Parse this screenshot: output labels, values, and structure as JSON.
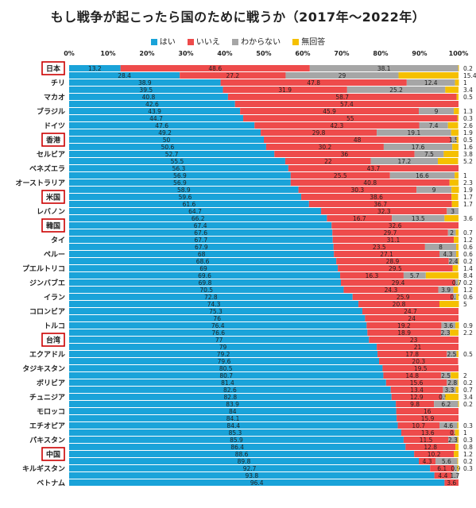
{
  "title": "もし戦争が起こったら国のために戦うか（2017年～2022年）",
  "legend": [
    "はい",
    "いいえ",
    "わからない",
    "無回答"
  ],
  "colors": {
    "yes": "#1AA3D9",
    "no": "#EE4B4B",
    "unknown": "#A6A6A6",
    "noanswer": "#F5C000",
    "highlight": "#CC0000"
  },
  "chart_data": {
    "type": "bar",
    "orientation": "horizontal",
    "stacked": true,
    "xlim": [
      0,
      100
    ],
    "xticks": [
      "0%",
      "10%",
      "20%",
      "30%",
      "40%",
      "50%",
      "60%",
      "70%",
      "80%",
      "90%",
      "100%"
    ],
    "series": [
      {
        "name": "はい",
        "key": "yes"
      },
      {
        "name": "いいえ",
        "key": "no"
      },
      {
        "name": "わからない",
        "key": "unknown"
      },
      {
        "name": "無回答",
        "key": "noanswer"
      }
    ],
    "rows": [
      {
        "country": "日本",
        "highlight": true,
        "yes": 13.2,
        "no": 48.6,
        "unknown": 38.1,
        "noanswer": 0.2,
        "labels": [
          "13.2",
          "48.6",
          "38.1",
          "0.2"
        ]
      },
      {
        "country": "",
        "yes": 28.4,
        "no": 27.2,
        "unknown": 29.0,
        "noanswer": 15.4,
        "labels": [
          "28.4",
          "27.2",
          "29",
          "15.4"
        ]
      },
      {
        "country": "チリ",
        "yes": 38.9,
        "no": 47.8,
        "unknown": 12.4,
        "noanswer": 1.0,
        "labels": [
          "38.9",
          "47.8",
          "12.4",
          "1"
        ]
      },
      {
        "country": "",
        "yes": 39.5,
        "no": 31.9,
        "unknown": 25.2,
        "noanswer": 3.4,
        "labels": [
          "39.5",
          "31.9",
          "25.2",
          "3.4"
        ]
      },
      {
        "country": "マカオ",
        "yes": 40.8,
        "no": 58.7,
        "unknown": 0,
        "noanswer": 0.5,
        "labels": [
          "40.8",
          "58.7",
          "",
          "0.5"
        ]
      },
      {
        "country": "",
        "yes": 42.6,
        "no": 57.4,
        "unknown": 0,
        "noanswer": 0,
        "labels": [
          "42.6",
          "57.4",
          "",
          ""
        ]
      },
      {
        "country": "ブラジル",
        "yes": 43.9,
        "no": 45.9,
        "unknown": 9.0,
        "noanswer": 1.3,
        "labels": [
          "43.9",
          "45.9",
          "9",
          "1.3"
        ]
      },
      {
        "country": "",
        "yes": 44.7,
        "no": 55.0,
        "unknown": 0,
        "noanswer": 0.3,
        "labels": [
          "44.7",
          "55",
          "",
          "0.3"
        ]
      },
      {
        "country": "ドイツ",
        "yes": 47.6,
        "no": 42.3,
        "unknown": 7.4,
        "noanswer": 2.6,
        "labels": [
          "47.6",
          "42.3",
          "7.4",
          "2.6"
        ]
      },
      {
        "country": "",
        "yes": 49.2,
        "no": 29.8,
        "unknown": 19.1,
        "noanswer": 1.9,
        "labels": [
          "49.2",
          "29.8",
          "19.1",
          "1.9"
        ]
      },
      {
        "country": "香港",
        "highlight": true,
        "yes": 50.0,
        "no": 48.0,
        "unknown": 1.5,
        "noanswer": 0.5,
        "labels": [
          "50",
          "48",
          "1.5",
          "0.5"
        ]
      },
      {
        "country": "",
        "yes": 50.6,
        "no": 30.2,
        "unknown": 17.6,
        "noanswer": 1.6,
        "labels": [
          "50.6",
          "30.2",
          "17.6",
          "1.6"
        ]
      },
      {
        "country": "セルビア",
        "yes": 52.7,
        "no": 36.0,
        "unknown": 7.5,
        "noanswer": 3.8,
        "labels": [
          "52.7",
          "36",
          "7.5",
          "3.8"
        ]
      },
      {
        "country": "",
        "yes": 55.5,
        "no": 22.0,
        "unknown": 17.2,
        "noanswer": 5.2,
        "labels": [
          "55.5",
          "22",
          "17.2",
          "5.2"
        ]
      },
      {
        "country": "ベネズエラ",
        "yes": 56.3,
        "no": 43.7,
        "unknown": 0,
        "noanswer": 0,
        "labels": [
          "56.3",
          "43.7",
          "",
          ""
        ]
      },
      {
        "country": "",
        "yes": 56.9,
        "no": 25.5,
        "unknown": 16.6,
        "noanswer": 1.0,
        "labels": [
          "56.9",
          "25.5",
          "16.6",
          "1"
        ]
      },
      {
        "country": "オーストラリア",
        "yes": 56.9,
        "no": 40.8,
        "unknown": 0,
        "noanswer": 2.3,
        "labels": [
          "56.9",
          "40.8",
          "",
          "2.3"
        ]
      },
      {
        "country": "",
        "yes": 58.9,
        "no": 30.3,
        "unknown": 9.0,
        "noanswer": 1.9,
        "labels": [
          "58.9",
          "30.3",
          "9",
          "1.9"
        ]
      },
      {
        "country": "米国",
        "highlight": true,
        "yes": 59.6,
        "no": 38.6,
        "unknown": 0,
        "noanswer": 1.7,
        "labels": [
          "59.6",
          "38.6",
          "",
          "1.7"
        ]
      },
      {
        "country": "",
        "yes": 61.6,
        "no": 36.7,
        "unknown": 0,
        "noanswer": 1.7,
        "labels": [
          "61.6",
          "36.7",
          "",
          "1.7"
        ]
      },
      {
        "country": "レバノン",
        "yes": 64.7,
        "no": 32.3,
        "unknown": 3.0,
        "noanswer": 0,
        "labels": [
          "64.7",
          "32.3",
          "3",
          ""
        ]
      },
      {
        "country": "",
        "yes": 66.2,
        "no": 16.7,
        "unknown": 13.5,
        "noanswer": 3.6,
        "labels": [
          "66.2",
          "16.7",
          "13.5",
          "3.6"
        ]
      },
      {
        "country": "韓国",
        "highlight": true,
        "yes": 67.4,
        "no": 32.6,
        "unknown": 0,
        "noanswer": 0,
        "labels": [
          "67.4",
          "32.6",
          "",
          ""
        ]
      },
      {
        "country": "",
        "yes": 67.6,
        "no": 29.7,
        "unknown": 2.0,
        "noanswer": 0.7,
        "labels": [
          "67.6",
          "29.7",
          "2",
          "0.7"
        ]
      },
      {
        "country": "タイ",
        "yes": 67.7,
        "no": 31.1,
        "unknown": 0,
        "noanswer": 1.2,
        "labels": [
          "67.7",
          "31.1",
          "",
          "1.2"
        ]
      },
      {
        "country": "",
        "yes": 67.9,
        "no": 23.5,
        "unknown": 8.0,
        "noanswer": 0.6,
        "labels": [
          "67.9",
          "23.5",
          "8",
          "0.6"
        ]
      },
      {
        "country": "ペルー",
        "yes": 68.0,
        "no": 27.1,
        "unknown": 4.3,
        "noanswer": 0.6,
        "labels": [
          "68",
          "27.1",
          "4.3",
          "0.6"
        ]
      },
      {
        "country": "",
        "yes": 68.6,
        "no": 28.9,
        "unknown": 2.4,
        "noanswer": 0.2,
        "labels": [
          "68.6",
          "28.9",
          "2.4",
          "0.2"
        ]
      },
      {
        "country": "プエルトリコ",
        "yes": 69.0,
        "no": 29.5,
        "unknown": 0,
        "noanswer": 1.4,
        "labels": [
          "69",
          "29.5",
          "",
          "1.4"
        ]
      },
      {
        "country": "",
        "yes": 69.6,
        "no": 16.3,
        "unknown": 5.7,
        "noanswer": 8.4,
        "labels": [
          "69.6",
          "16.3",
          "5.7",
          "8.4"
        ]
      },
      {
        "country": "ジンバブエ",
        "yes": 69.8,
        "no": 29.4,
        "unknown": 0.7,
        "noanswer": 0.2,
        "labels": [
          "69.8",
          "29.4",
          "0.7",
          "0.2"
        ]
      },
      {
        "country": "",
        "yes": 70.5,
        "no": 24.3,
        "unknown": 3.9,
        "noanswer": 1.2,
        "labels": [
          "70.5",
          "24.3",
          "3.9",
          "1.2"
        ]
      },
      {
        "country": "イラン",
        "yes": 72.8,
        "no": 25.9,
        "unknown": 0.7,
        "noanswer": 0.6,
        "labels": [
          "72.8",
          "25.9",
          "0.7",
          "0.6"
        ]
      },
      {
        "country": "",
        "yes": 74.3,
        "no": 20.8,
        "unknown": 0,
        "noanswer": 5.0,
        "labels": [
          "74.3",
          "20.8",
          "",
          "5"
        ]
      },
      {
        "country": "コロンビア",
        "yes": 75.3,
        "no": 24.7,
        "unknown": 0,
        "noanswer": 0,
        "labels": [
          "75.3",
          "24.7",
          "",
          ""
        ]
      },
      {
        "country": "",
        "yes": 76.0,
        "no": 24.0,
        "unknown": 0,
        "noanswer": 0,
        "labels": [
          "76",
          "24",
          "",
          ""
        ]
      },
      {
        "country": "トルコ",
        "yes": 76.4,
        "no": 19.2,
        "unknown": 3.6,
        "noanswer": 0.9,
        "labels": [
          "76.4",
          "19.2",
          "3.6",
          "0.9"
        ]
      },
      {
        "country": "",
        "yes": 76.6,
        "no": 18.9,
        "unknown": 2.3,
        "noanswer": 2.2,
        "labels": [
          "76.6",
          "18.9",
          "2.3",
          "2.2"
        ]
      },
      {
        "country": "台湾",
        "highlight": true,
        "yes": 77.0,
        "no": 23.0,
        "unknown": 0,
        "noanswer": 0,
        "labels": [
          "77",
          "23",
          "",
          ""
        ]
      },
      {
        "country": "",
        "yes": 79.0,
        "no": 21.0,
        "unknown": 0,
        "noanswer": 0,
        "labels": [
          "79",
          "21",
          "",
          ""
        ]
      },
      {
        "country": "エクアドル",
        "yes": 79.2,
        "no": 17.8,
        "unknown": 2.5,
        "noanswer": 0.5,
        "labels": [
          "79.2",
          "17.8",
          "2.5",
          "0.5"
        ]
      },
      {
        "country": "",
        "yes": 79.6,
        "no": 20.3,
        "unknown": 0,
        "noanswer": 0,
        "labels": [
          "79.6",
          "20.3",
          "",
          ""
        ]
      },
      {
        "country": "タジキスタン",
        "yes": 80.5,
        "no": 19.5,
        "unknown": 0,
        "noanswer": 0,
        "labels": [
          "80.5",
          "19.5",
          "",
          ""
        ]
      },
      {
        "country": "",
        "yes": 80.7,
        "no": 14.8,
        "unknown": 2.5,
        "noanswer": 2.0,
        "labels": [
          "80.7",
          "14.8",
          "2.5",
          "2"
        ]
      },
      {
        "country": "ボリビア",
        "yes": 81.4,
        "no": 15.6,
        "unknown": 2.8,
        "noanswer": 0.2,
        "labels": [
          "81.4",
          "15.6",
          "2.8",
          "0.2"
        ]
      },
      {
        "country": "",
        "yes": 82.6,
        "no": 13.4,
        "unknown": 3.3,
        "noanswer": 0.7,
        "labels": [
          "82.6",
          "13.4",
          "3.3",
          "0.7"
        ]
      },
      {
        "country": "チュニジア",
        "yes": 82.8,
        "no": 12.9,
        "unknown": 0.9,
        "noanswer": 3.4,
        "labels": [
          "82.8",
          "12.9",
          "0.9",
          "3.4"
        ]
      },
      {
        "country": "",
        "yes": 83.9,
        "no": 9.8,
        "unknown": 6.2,
        "noanswer": 0.2,
        "labels": [
          "83.9",
          "9.8",
          "6.2",
          "0.2"
        ]
      },
      {
        "country": "モロッコ",
        "yes": 84.0,
        "no": 16.0,
        "unknown": 0,
        "noanswer": 0,
        "labels": [
          "84",
          "16",
          "",
          ""
        ]
      },
      {
        "country": "",
        "yes": 84.1,
        "no": 15.9,
        "unknown": 0,
        "noanswer": 0,
        "labels": [
          "84.1",
          "15.9",
          "",
          ""
        ]
      },
      {
        "country": "エチオピア",
        "yes": 84.4,
        "no": 10.7,
        "unknown": 4.6,
        "noanswer": 0.3,
        "labels": [
          "84.4",
          "10.7",
          "4.6",
          "0.3"
        ]
      },
      {
        "country": "",
        "yes": 85.3,
        "no": 13.6,
        "unknown": 0.2,
        "noanswer": 1.0,
        "labels": [
          "85.3",
          "13.6",
          "0.2",
          "1"
        ]
      },
      {
        "country": "パキスタン",
        "yes": 85.9,
        "no": 11.5,
        "unknown": 2.3,
        "noanswer": 0.3,
        "labels": [
          "85.9",
          "11.5",
          "2.3",
          "0.3"
        ]
      },
      {
        "country": "",
        "yes": 86.4,
        "no": 12.8,
        "unknown": 0,
        "noanswer": 0.8,
        "labels": [
          "86.4",
          "12.8",
          "",
          "0.8"
        ]
      },
      {
        "country": "中国",
        "highlight": true,
        "yes": 88.6,
        "no": 10.2,
        "unknown": 0,
        "noanswer": 1.2,
        "labels": [
          "88.6",
          "10.2",
          "",
          "1.2"
        ]
      },
      {
        "country": "",
        "yes": 89.8,
        "no": 4.3,
        "unknown": 5.6,
        "noanswer": 0.2,
        "labels": [
          "89.8",
          "4.3",
          "5.6",
          "0.2"
        ]
      },
      {
        "country": "キルギスタン",
        "yes": 92.7,
        "no": 6.1,
        "unknown": 0.9,
        "noanswer": 0.3,
        "labels": [
          "92.7",
          "6.1",
          "0.9",
          "0.3"
        ]
      },
      {
        "country": "",
        "yes": 93.8,
        "no": 4.4,
        "unknown": 1.7,
        "noanswer": 0,
        "labels": [
          "93.8",
          "4.4",
          "1.7",
          ""
        ]
      },
      {
        "country": "ベトナム",
        "yes": 96.4,
        "no": 3.6,
        "unknown": 0,
        "noanswer": 0,
        "labels": [
          "96.4",
          "3.6",
          "",
          ""
        ]
      }
    ]
  }
}
